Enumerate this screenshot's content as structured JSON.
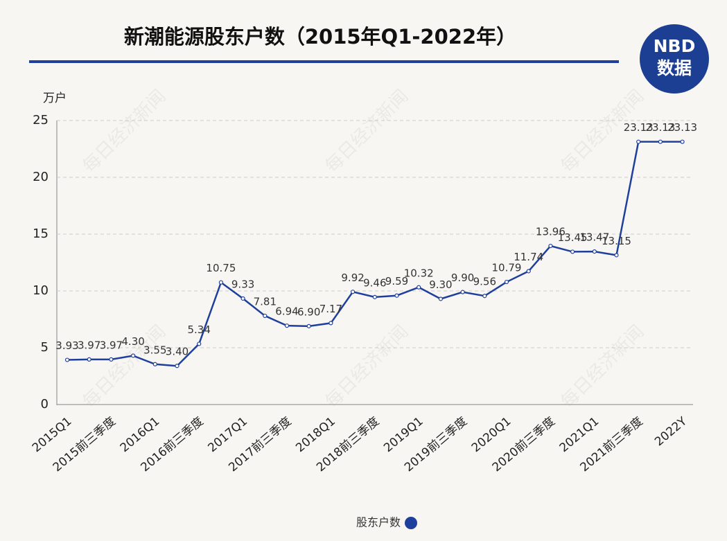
{
  "chart_data": {
    "type": "line",
    "title": "新潮能源股东户数（2015年Q1-2022年）",
    "y_unit": "万户",
    "logo": [
      "NBD",
      "数据"
    ],
    "watermark": "每日经济新闻",
    "categories": [
      "2015Q1",
      null,
      "2015前三季度",
      null,
      "2016Q1",
      null,
      "2016前三季度",
      null,
      "2017Q1",
      null,
      "2017前三季度",
      null,
      "2018Q1",
      null,
      "2018前三季度",
      null,
      "2019Q1",
      null,
      "2019前三季度",
      null,
      "2020Q1",
      null,
      "2020前三季度",
      null,
      "2021Q1",
      null,
      "2021前三季度",
      null,
      "2022Y"
    ],
    "series": [
      {
        "name": "股东户数",
        "color": "#1f3f9c",
        "values": [
          3.93,
          3.97,
          3.97,
          4.3,
          3.55,
          3.4,
          5.34,
          10.75,
          9.33,
          7.81,
          6.94,
          6.9,
          7.17,
          9.92,
          9.46,
          9.59,
          10.32,
          9.3,
          9.9,
          9.56,
          10.79,
          11.74,
          13.96,
          13.45,
          13.47,
          13.15,
          23.13,
          23.13,
          23.13
        ],
        "value_labels": [
          "3.93",
          "3.97",
          "3.97",
          "4.30",
          "3.55",
          "3.40",
          "5.34",
          "10.75",
          "9.33",
          "7.81",
          "6.94",
          "6.90",
          "7.17",
          "9.92",
          "9.46",
          "9.59",
          "10.32",
          "9.30",
          "9.90",
          "9.56",
          "10.79",
          "11.74",
          "13.96",
          "13.45",
          "13.47",
          "13.15",
          "23.13",
          "23.13",
          "23.13"
        ]
      }
    ],
    "ylim": [
      0,
      25
    ],
    "yticks": [
      0,
      5,
      10,
      15,
      20,
      25
    ],
    "grid": true
  }
}
